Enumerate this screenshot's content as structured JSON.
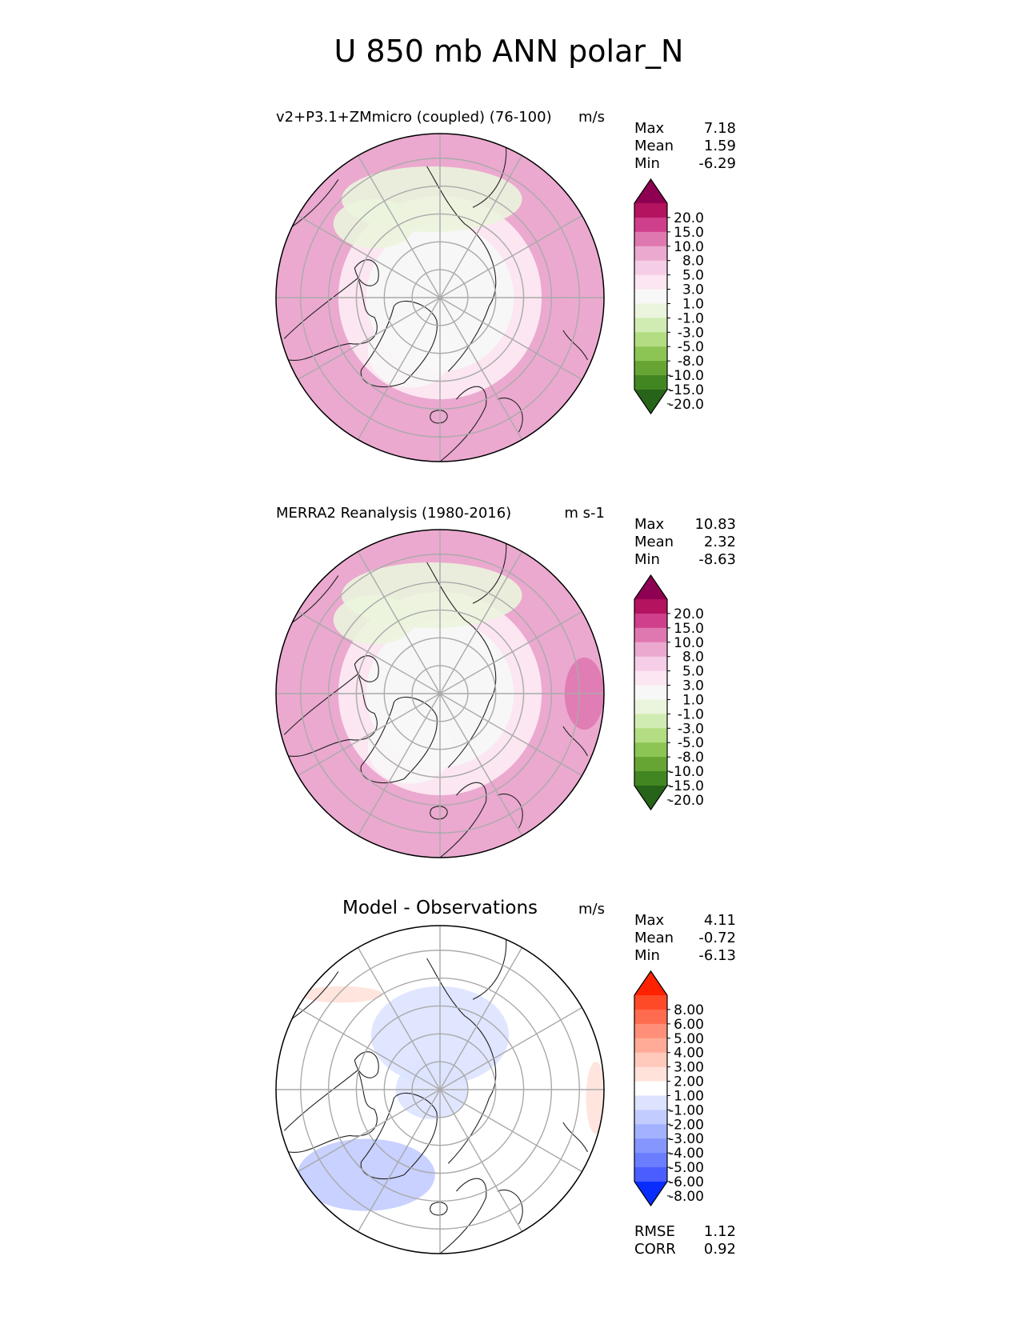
{
  "figure": {
    "title": "U 850 mb ANN polar_N"
  },
  "chart_data": [
    {
      "type": "heatmap",
      "projection": "north-polar-stereographic",
      "title": "v2+P3.1+ZMmicro (coupled) (76-100)",
      "units": "m/s",
      "stats": [
        {
          "label": "Max",
          "value": "7.18"
        },
        {
          "label": "Mean",
          "value": "1.59"
        },
        {
          "label": "Min",
          "value": "-6.29"
        }
      ],
      "colorbar": {
        "ticks": [
          "20.0",
          "15.0",
          "10.0",
          "8.0",
          "5.0",
          "3.0",
          "1.0",
          "-1.0",
          "-3.0",
          "-5.0",
          "-8.0",
          "-10.0",
          "-15.0",
          "-20.0"
        ],
        "colors": [
          "#8e0152",
          "#b3135f",
          "#cf3f8b",
          "#df78b0",
          "#eba9cf",
          "#f6cde6",
          "#fbe6f1",
          "#f7f7f7",
          "#ebf4dd",
          "#d1ecb2",
          "#b2dd82",
          "#8cc554",
          "#66a534",
          "#428622",
          "#276419"
        ]
      },
      "regions": [
        {
          "kind": "ring",
          "value": 5.5,
          "radius_frac": [
            0.62,
            1.0
          ]
        },
        {
          "kind": "ring",
          "value": 2.0,
          "radius_frac": [
            0.45,
            0.62
          ]
        },
        {
          "kind": "core",
          "value": 0.0,
          "radius_frac": [
            0.0,
            0.45
          ]
        },
        {
          "kind": "band",
          "value": -2.0,
          "sector": "north-atlantic-arctic"
        },
        {
          "kind": "blob",
          "value": 7.0,
          "sector": "north-pacific"
        },
        {
          "kind": "blob",
          "value": -0.5,
          "sector": "greenland"
        }
      ]
    },
    {
      "type": "heatmap",
      "projection": "north-polar-stereographic",
      "title": "MERRA2 Reanalysis (1980-2016)",
      "units": "m s-1",
      "stats": [
        {
          "label": "Max",
          "value": "10.83"
        },
        {
          "label": "Mean",
          "value": "2.32"
        },
        {
          "label": "Min",
          "value": "-8.63"
        }
      ],
      "colorbar": {
        "ticks": [
          "20.0",
          "15.0",
          "10.0",
          "8.0",
          "5.0",
          "3.0",
          "1.0",
          "-1.0",
          "-3.0",
          "-5.0",
          "-8.0",
          "-10.0",
          "-15.0",
          "-20.0"
        ],
        "colors": [
          "#8e0152",
          "#b3135f",
          "#cf3f8b",
          "#df78b0",
          "#eba9cf",
          "#f6cde6",
          "#fbe6f1",
          "#f7f7f7",
          "#ebf4dd",
          "#d1ecb2",
          "#b2dd82",
          "#8cc554",
          "#66a534",
          "#428622",
          "#276419"
        ]
      },
      "regions": [
        {
          "kind": "ring",
          "value": 6.0,
          "radius_frac": [
            0.62,
            1.0
          ]
        },
        {
          "kind": "ring",
          "value": 2.5,
          "radius_frac": [
            0.45,
            0.62
          ]
        },
        {
          "kind": "core",
          "value": 0.5,
          "radius_frac": [
            0.0,
            0.45
          ]
        },
        {
          "kind": "band",
          "value": -2.0,
          "sector": "north-atlantic-arctic"
        },
        {
          "kind": "blob",
          "value": 9.0,
          "sector": "north-pacific"
        },
        {
          "kind": "blob",
          "value": -0.5,
          "sector": "greenland"
        }
      ]
    },
    {
      "type": "heatmap",
      "projection": "north-polar-stereographic",
      "title": "Model - Observations",
      "units": "m/s",
      "stats": [
        {
          "label": "Max",
          "value": "4.11"
        },
        {
          "label": "Mean",
          "value": "-0.72"
        },
        {
          "label": "Min",
          "value": "-6.13"
        }
      ],
      "stats_footer": [
        {
          "label": "RMSE",
          "value": "1.12"
        },
        {
          "label": "CORR",
          "value": "0.92"
        }
      ],
      "colorbar": {
        "ticks": [
          "8.00",
          "6.00",
          "5.00",
          "4.00",
          "3.00",
          "2.00",
          "1.00",
          "-1.00",
          "-2.00",
          "-3.00",
          "-4.00",
          "-5.00",
          "-6.00",
          "-8.00"
        ],
        "colors": [
          "#ff2200",
          "#ff4a28",
          "#ff6b4e",
          "#ff8f78",
          "#ffab98",
          "#ffc9bb",
          "#ffe2da",
          "#ffffff",
          "#dde3ff",
          "#c2ccff",
          "#a3b2ff",
          "#8597ff",
          "#6a7dff",
          "#4a5eff",
          "#0a2dff"
        ]
      },
      "regions": [
        {
          "kind": "core",
          "value": 0.0,
          "radius_frac": [
            0.0,
            1.0
          ]
        },
        {
          "kind": "blob",
          "value": -1.5,
          "sector": "siberia"
        },
        {
          "kind": "blob",
          "value": -2.5,
          "sector": "north-atlantic"
        },
        {
          "kind": "blob",
          "value": -1.5,
          "sector": "arctic-center"
        },
        {
          "kind": "blob",
          "value": 1.5,
          "sector": "pacific-edge"
        }
      ]
    }
  ]
}
